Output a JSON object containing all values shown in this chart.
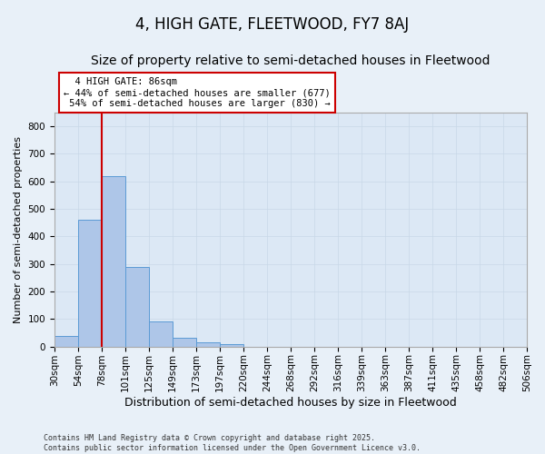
{
  "title": "4, HIGH GATE, FLEETWOOD, FY7 8AJ",
  "subtitle": "Size of property relative to semi-detached houses in Fleetwood",
  "xlabel": "Distribution of semi-detached houses by size in Fleetwood",
  "ylabel": "Number of semi-detached properties",
  "bins": [
    "30sqm",
    "54sqm",
    "78sqm",
    "101sqm",
    "125sqm",
    "149sqm",
    "173sqm",
    "197sqm",
    "220sqm",
    "244sqm",
    "268sqm",
    "292sqm",
    "316sqm",
    "339sqm",
    "363sqm",
    "387sqm",
    "411sqm",
    "435sqm",
    "458sqm",
    "482sqm",
    "506sqm"
  ],
  "bar_heights": [
    38,
    460,
    617,
    290,
    92,
    33,
    15,
    10,
    0,
    0,
    0,
    0,
    0,
    0,
    0,
    0,
    0,
    0,
    0,
    0
  ],
  "ylim": [
    0,
    850
  ],
  "yticks": [
    0,
    100,
    200,
    300,
    400,
    500,
    600,
    700,
    800
  ],
  "property_label": "4 HIGH GATE: 86sqm",
  "pct_smaller": 44,
  "pct_smaller_count": 677,
  "pct_larger": 54,
  "pct_larger_count": 830,
  "vline_x_index": 2.0,
  "bar_color": "#aec6e8",
  "bar_edge_color": "#5b9bd5",
  "vline_color": "#cc0000",
  "annotation_box_edge": "#cc0000",
  "grid_color": "#c8d8e8",
  "bg_color": "#e8f0f8",
  "plot_bg_color": "#dce8f5",
  "footer": "Contains HM Land Registry data © Crown copyright and database right 2025.\nContains public sector information licensed under the Open Government Licence v3.0.",
  "title_fontsize": 12,
  "subtitle_fontsize": 10,
  "xlabel_fontsize": 9,
  "ylabel_fontsize": 8,
  "tick_fontsize": 7.5,
  "footer_fontsize": 6
}
